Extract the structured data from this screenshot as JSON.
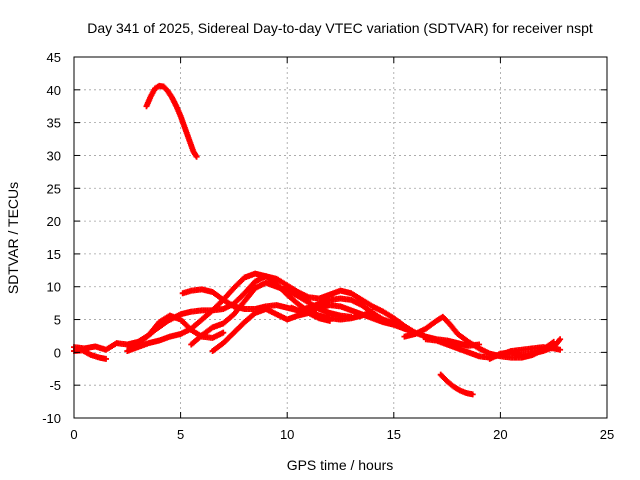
{
  "chart_data": {
    "type": "scatter",
    "title": "Day 341 of 2025, Sidereal Day-to-day VTEC variation (SDTVAR) for receiver nspt",
    "xlabel": "GPS time / hours",
    "ylabel": "SDTVAR / TECUs",
    "xlim": [
      0,
      25
    ],
    "ylim": [
      -10,
      45
    ],
    "xticks": [
      0,
      5,
      10,
      15,
      20,
      25
    ],
    "yticks": [
      -10,
      -5,
      0,
      5,
      10,
      15,
      20,
      25,
      30,
      35,
      40,
      45
    ],
    "grid": true,
    "marker": "plus",
    "color": "#ff0000",
    "series": [
      {
        "name": "track-1",
        "points": [
          [
            3.4,
            37.5
          ],
          [
            3.6,
            39.0
          ],
          [
            3.8,
            40.2
          ],
          [
            4.0,
            40.6
          ],
          [
            4.2,
            40.5
          ],
          [
            4.4,
            39.8
          ],
          [
            4.6,
            38.8
          ],
          [
            4.8,
            37.5
          ],
          [
            5.0,
            36.0
          ],
          [
            5.2,
            34.2
          ],
          [
            5.4,
            32.4
          ],
          [
            5.6,
            30.6
          ],
          [
            5.75,
            29.8
          ]
        ]
      },
      {
        "name": "track-2",
        "points": [
          [
            0.0,
            0.2
          ],
          [
            0.4,
            0.3
          ],
          [
            0.8,
            -0.4
          ],
          [
            1.2,
            -0.8
          ],
          [
            1.5,
            -1.0
          ]
        ]
      },
      {
        "name": "track-3",
        "points": [
          [
            0.0,
            0.8
          ],
          [
            0.5,
            0.6
          ],
          [
            1.0,
            0.9
          ],
          [
            1.5,
            0.4
          ],
          [
            2.0,
            1.4
          ],
          [
            2.5,
            1.2
          ],
          [
            3.0,
            1.6
          ],
          [
            3.5,
            2.6
          ],
          [
            4.0,
            4.6
          ],
          [
            4.5,
            5.6
          ],
          [
            5.0,
            5.0
          ],
          [
            5.5,
            3.4
          ],
          [
            6.0,
            2.4
          ],
          [
            6.5,
            2.2
          ],
          [
            7.0,
            3.0
          ]
        ]
      },
      {
        "name": "track-4",
        "points": [
          [
            2.5,
            0.2
          ],
          [
            3.0,
            0.8
          ],
          [
            3.5,
            1.4
          ],
          [
            4.0,
            1.8
          ],
          [
            4.5,
            2.4
          ],
          [
            5.0,
            2.8
          ],
          [
            5.5,
            3.6
          ],
          [
            6.0,
            5.0
          ],
          [
            6.5,
            6.4
          ],
          [
            7.0,
            8.0
          ],
          [
            7.5,
            9.8
          ],
          [
            8.0,
            11.4
          ],
          [
            8.5,
            12.0
          ],
          [
            9.0,
            11.6
          ],
          [
            9.5,
            10.4
          ],
          [
            10.0,
            8.8
          ],
          [
            10.5,
            7.4
          ],
          [
            11.0,
            6.2
          ],
          [
            11.5,
            5.6
          ],
          [
            12.0,
            5.2
          ],
          [
            12.5,
            5.0
          ],
          [
            13.0,
            5.2
          ],
          [
            13.5,
            5.6
          ],
          [
            14.0,
            6.2
          ]
        ]
      },
      {
        "name": "track-5",
        "points": [
          [
            2.6,
            0.8
          ],
          [
            3.2,
            1.8
          ],
          [
            3.8,
            3.4
          ],
          [
            4.4,
            4.8
          ],
          [
            5.0,
            5.8
          ],
          [
            5.5,
            6.2
          ],
          [
            6.0,
            6.4
          ],
          [
            6.5,
            6.4
          ],
          [
            7.0,
            6.6
          ],
          [
            7.5,
            7.4
          ],
          [
            8.0,
            9.0
          ],
          [
            8.5,
            10.8
          ],
          [
            9.0,
            11.6
          ],
          [
            9.5,
            11.2
          ],
          [
            10.0,
            10.2
          ],
          [
            10.5,
            9.2
          ],
          [
            11.0,
            8.4
          ],
          [
            11.5,
            8.2
          ],
          [
            12.0,
            8.8
          ],
          [
            12.5,
            9.4
          ],
          [
            13.0,
            9.0
          ],
          [
            13.5,
            8.0
          ],
          [
            14.0,
            7.0
          ],
          [
            14.5,
            6.2
          ],
          [
            15.0,
            5.2
          ],
          [
            15.5,
            4.0
          ],
          [
            16.0,
            3.0
          ]
        ]
      },
      {
        "name": "track-6",
        "points": [
          [
            5.1,
            9.0
          ],
          [
            5.5,
            9.4
          ],
          [
            6.0,
            9.6
          ],
          [
            6.5,
            9.2
          ],
          [
            7.0,
            8.0
          ],
          [
            7.5,
            7.0
          ],
          [
            8.0,
            6.6
          ],
          [
            8.5,
            6.6
          ],
          [
            9.0,
            7.0
          ],
          [
            9.5,
            7.2
          ],
          [
            10.0,
            6.8
          ],
          [
            10.5,
            6.4
          ],
          [
            11.0,
            6.4
          ],
          [
            11.5,
            6.8
          ],
          [
            12.0,
            7.2
          ],
          [
            12.5,
            7.0
          ],
          [
            13.0,
            6.4
          ],
          [
            13.5,
            5.8
          ],
          [
            14.0,
            5.2
          ],
          [
            14.5,
            4.6
          ],
          [
            15.0,
            4.2
          ],
          [
            15.5,
            3.6
          ]
        ]
      },
      {
        "name": "track-7",
        "points": [
          [
            5.5,
            1.2
          ],
          [
            6.0,
            2.6
          ],
          [
            6.5,
            3.8
          ],
          [
            7.0,
            4.4
          ],
          [
            7.5,
            5.8
          ],
          [
            8.0,
            7.8
          ],
          [
            8.5,
            9.8
          ],
          [
            9.0,
            10.6
          ],
          [
            9.5,
            10.0
          ],
          [
            10.0,
            9.4
          ],
          [
            10.5,
            8.6
          ],
          [
            11.0,
            7.6
          ],
          [
            11.5,
            6.6
          ],
          [
            12.0,
            6.0
          ],
          [
            12.5,
            5.6
          ],
          [
            13.0,
            5.4
          ]
        ]
      },
      {
        "name": "track-8",
        "points": [
          [
            6.5,
            0.2
          ],
          [
            7.0,
            1.4
          ],
          [
            7.5,
            3.0
          ],
          [
            8.0,
            4.6
          ],
          [
            8.5,
            6.0
          ],
          [
            9.0,
            6.6
          ],
          [
            9.5,
            5.8
          ],
          [
            10.0,
            5.0
          ],
          [
            10.5,
            5.6
          ],
          [
            11.0,
            6.0
          ],
          [
            11.5,
            5.2
          ],
          [
            12.0,
            4.8
          ]
        ]
      },
      {
        "name": "track-9",
        "points": [
          [
            10.2,
            6.8
          ],
          [
            10.5,
            6.4
          ],
          [
            11.0,
            6.8
          ],
          [
            11.5,
            7.4
          ],
          [
            12.0,
            8.0
          ],
          [
            12.5,
            8.2
          ],
          [
            13.0,
            8.0
          ],
          [
            13.5,
            7.2
          ],
          [
            14.0,
            6.0
          ],
          [
            14.5,
            5.0
          ],
          [
            15.0,
            4.4
          ],
          [
            15.5,
            3.6
          ],
          [
            16.0,
            3.0
          ],
          [
            16.5,
            2.4
          ],
          [
            17.0,
            2.0
          ],
          [
            17.5,
            1.8
          ],
          [
            18.0,
            1.4
          ],
          [
            18.5,
            1.0
          ],
          [
            19.0,
            1.2
          ]
        ]
      },
      {
        "name": "track-10",
        "points": [
          [
            15.5,
            2.4
          ],
          [
            16.0,
            2.8
          ],
          [
            16.5,
            3.6
          ],
          [
            17.0,
            4.8
          ],
          [
            17.3,
            5.4
          ],
          [
            17.6,
            4.4
          ],
          [
            18.0,
            2.8
          ],
          [
            18.5,
            1.6
          ],
          [
            19.0,
            0.6
          ],
          [
            19.5,
            -0.2
          ],
          [
            20.0,
            -0.6
          ],
          [
            20.5,
            -0.8
          ],
          [
            21.0,
            -0.8
          ],
          [
            21.5,
            -0.4
          ],
          [
            22.0,
            0.4
          ],
          [
            22.5,
            1.6
          ]
        ]
      },
      {
        "name": "track-11",
        "points": [
          [
            17.2,
            -3.4
          ],
          [
            17.5,
            -4.4
          ],
          [
            17.8,
            -5.2
          ],
          [
            18.1,
            -5.8
          ],
          [
            18.4,
            -6.2
          ],
          [
            18.7,
            -6.4
          ]
        ]
      },
      {
        "name": "track-12",
        "points": [
          [
            16.5,
            2.0
          ],
          [
            17.0,
            1.8
          ],
          [
            17.5,
            1.2
          ],
          [
            18.0,
            0.6
          ],
          [
            18.5,
            0.0
          ],
          [
            19.0,
            -0.6
          ],
          [
            19.5,
            -0.8
          ],
          [
            20.0,
            -0.4
          ],
          [
            20.5,
            0.2
          ],
          [
            21.0,
            0.4
          ],
          [
            21.5,
            0.6
          ],
          [
            22.0,
            0.8
          ],
          [
            22.5,
            0.6
          ],
          [
            22.8,
            0.4
          ]
        ]
      },
      {
        "name": "track-13",
        "points": [
          [
            19.5,
            -1.0
          ],
          [
            20.0,
            -0.2
          ],
          [
            20.5,
            0.0
          ],
          [
            21.0,
            -0.4
          ],
          [
            21.5,
            -0.2
          ],
          [
            22.0,
            0.2
          ],
          [
            22.5,
            0.8
          ],
          [
            22.8,
            2.0
          ]
        ]
      }
    ]
  }
}
